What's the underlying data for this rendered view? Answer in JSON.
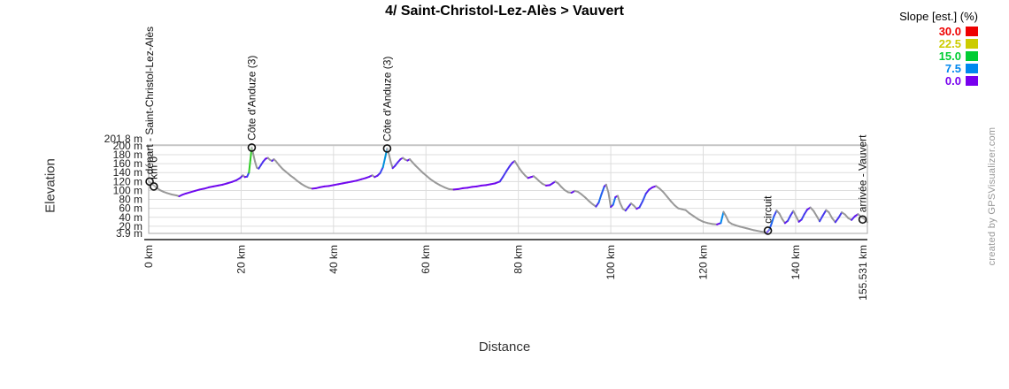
{
  "chart": {
    "title": "4/ Saint-Christol-Lez-Alès > Vauvert",
    "xlabel": "Distance",
    "ylabel": "Elevation",
    "watermark": "created by GPSVisualizer.com"
  },
  "legend": {
    "title": "Slope [est.] (%)",
    "entries": [
      {
        "label": "30.0",
        "color": "#ee0000"
      },
      {
        "label": "22.5",
        "color": "#cccc00"
      },
      {
        "label": "15.0",
        "color": "#00cc33"
      },
      {
        "label": "7.5",
        "color": "#0088ee"
      },
      {
        "label": "0.0",
        "color": "#7700ee"
      }
    ]
  },
  "chart_data": {
    "type": "line",
    "title": "4/ Saint-Christol-Lez-Alès > Vauvert",
    "xlabel": "Distance",
    "ylabel": "Elevation",
    "x_unit": "km",
    "y_unit": "m",
    "xlim": [
      0,
      155.531
    ],
    "ylim": [
      3.9,
      201.8
    ],
    "grid": true,
    "legend_position": "top-right",
    "ascent_color_scale_pct": [
      [
        0,
        "#7700ee"
      ],
      [
        7.5,
        "#0088ee"
      ],
      [
        15,
        "#00cc33"
      ],
      [
        22.5,
        "#cccc00"
      ],
      [
        30,
        "#ee0000"
      ]
    ],
    "descent_color": "#999999",
    "x_ticks": [
      {
        "value": 0,
        "label": "0 km"
      },
      {
        "value": 20,
        "label": "20 km"
      },
      {
        "value": 40,
        "label": "40 km"
      },
      {
        "value": 60,
        "label": "60 km"
      },
      {
        "value": 80,
        "label": "80 km"
      },
      {
        "value": 100,
        "label": "100 km"
      },
      {
        "value": 120,
        "label": "120 km"
      },
      {
        "value": 140,
        "label": "140 km"
      },
      {
        "value": 155.531,
        "label": "155.531 km",
        "edge": "max"
      }
    ],
    "y_ticks": [
      {
        "value": 201.8,
        "label": "201.8 m",
        "edge": "max"
      },
      {
        "value": 200,
        "label": "200 m"
      },
      {
        "value": 180,
        "label": "180 m"
      },
      {
        "value": 160,
        "label": "160 m"
      },
      {
        "value": 140,
        "label": "140 m"
      },
      {
        "value": 120,
        "label": "120 m"
      },
      {
        "value": 100,
        "label": "100 m"
      },
      {
        "value": 80,
        "label": "80 m"
      },
      {
        "value": 60,
        "label": "60 m"
      },
      {
        "value": 40,
        "label": "40 m"
      },
      {
        "value": 20,
        "label": "20 m"
      },
      {
        "value": 3.9,
        "label": "3.9 m",
        "edge": "min"
      }
    ],
    "waypoints": [
      {
        "label": "départ - Saint-Christol-Lez-Alès",
        "km": 0.2,
        "elev": 120
      },
      {
        "label": "km 0",
        "km": 1.1,
        "elev": 109
      },
      {
        "label": "Côte d'Anduze (3)",
        "km": 22.3,
        "elev": 196
      },
      {
        "label": "Côte d'Anduze (3)",
        "km": 51.6,
        "elev": 194
      },
      {
        "label": "circuit",
        "km": 134.0,
        "elev": 10
      },
      {
        "label": "arrivée - Vauvert",
        "km": 154.5,
        "elev": 35
      }
    ],
    "profile_km_m": [
      [
        0,
        121
      ],
      [
        0.8,
        114
      ],
      [
        1.6,
        107
      ],
      [
        2.4,
        101
      ],
      [
        3.2,
        97
      ],
      [
        4,
        94
      ],
      [
        5,
        91
      ],
      [
        6,
        89
      ],
      [
        6.6,
        87
      ],
      [
        7.2,
        90
      ],
      [
        8,
        93
      ],
      [
        9,
        96
      ],
      [
        10,
        99
      ],
      [
        11,
        102
      ],
      [
        12,
        104
      ],
      [
        13,
        107
      ],
      [
        14,
        109
      ],
      [
        15,
        111
      ],
      [
        16,
        113
      ],
      [
        17,
        116
      ],
      [
        18,
        119
      ],
      [
        19,
        123
      ],
      [
        19.8,
        128
      ],
      [
        20.4,
        134
      ],
      [
        20.8,
        130
      ],
      [
        21.3,
        131
      ],
      [
        21.7,
        140
      ],
      [
        22,
        168
      ],
      [
        22.3,
        196
      ],
      [
        22.6,
        183
      ],
      [
        23,
        165
      ],
      [
        23.4,
        151
      ],
      [
        23.8,
        149
      ],
      [
        24.3,
        157
      ],
      [
        24.8,
        165
      ],
      [
        25.3,
        171
      ],
      [
        25.8,
        173
      ],
      [
        26.2,
        169
      ],
      [
        26.7,
        166
      ],
      [
        27.1,
        170
      ],
      [
        27.5,
        166
      ],
      [
        28.2,
        157
      ],
      [
        29,
        148
      ],
      [
        29.8,
        141
      ],
      [
        30.6,
        134
      ],
      [
        31.4,
        128
      ],
      [
        32.2,
        121
      ],
      [
        33,
        115
      ],
      [
        33.8,
        110
      ],
      [
        34.6,
        106
      ],
      [
        35.4,
        104
      ],
      [
        36.2,
        105
      ],
      [
        37,
        107
      ],
      [
        38,
        109
      ],
      [
        39,
        110
      ],
      [
        40,
        112
      ],
      [
        41,
        114
      ],
      [
        42,
        116
      ],
      [
        43,
        118
      ],
      [
        44,
        120
      ],
      [
        45,
        122
      ],
      [
        46,
        125
      ],
      [
        47,
        128
      ],
      [
        47.8,
        131
      ],
      [
        48.4,
        134
      ],
      [
        48.9,
        130
      ],
      [
        49.5,
        133
      ],
      [
        50.1,
        139
      ],
      [
        50.7,
        152
      ],
      [
        51.2,
        175
      ],
      [
        51.6,
        194
      ],
      [
        52,
        181
      ],
      [
        52.4,
        163
      ],
      [
        52.8,
        150
      ],
      [
        53.3,
        155
      ],
      [
        53.9,
        163
      ],
      [
        54.5,
        170
      ],
      [
        55,
        173
      ],
      [
        55.5,
        169
      ],
      [
        56,
        167
      ],
      [
        56.5,
        170
      ],
      [
        57,
        164
      ],
      [
        57.8,
        155
      ],
      [
        58.6,
        147
      ],
      [
        59.4,
        139
      ],
      [
        60.2,
        132
      ],
      [
        61,
        125
      ],
      [
        62,
        118
      ],
      [
        63,
        112
      ],
      [
        64,
        107
      ],
      [
        65,
        103
      ],
      [
        66,
        102
      ],
      [
        67,
        103
      ],
      [
        68,
        105
      ],
      [
        69,
        106
      ],
      [
        70,
        108
      ],
      [
        71,
        109
      ],
      [
        72,
        111
      ],
      [
        73,
        112
      ],
      [
        74,
        114
      ],
      [
        75,
        116
      ],
      [
        76,
        120
      ],
      [
        76.7,
        131
      ],
      [
        77.4,
        143
      ],
      [
        78.1,
        154
      ],
      [
        78.7,
        162
      ],
      [
        79.2,
        166
      ],
      [
        79.7,
        158
      ],
      [
        80.3,
        148
      ],
      [
        80.9,
        140
      ],
      [
        81.5,
        133
      ],
      [
        82.1,
        128
      ],
      [
        82.7,
        130
      ],
      [
        83.3,
        132
      ],
      [
        83.9,
        127
      ],
      [
        84.5,
        121
      ],
      [
        85.2,
        115
      ],
      [
        86,
        111
      ],
      [
        86.8,
        112
      ],
      [
        87.4,
        116
      ],
      [
        88,
        120
      ],
      [
        88.6,
        116
      ],
      [
        89.3,
        108
      ],
      [
        90,
        101
      ],
      [
        90.8,
        96
      ],
      [
        91.5,
        95
      ],
      [
        92.2,
        99
      ],
      [
        92.9,
        97
      ],
      [
        93.7,
        91
      ],
      [
        94.5,
        84
      ],
      [
        95.3,
        76
      ],
      [
        96.1,
        69
      ],
      [
        96.8,
        64
      ],
      [
        97.4,
        73
      ],
      [
        98,
        92
      ],
      [
        98.6,
        109
      ],
      [
        99,
        113
      ],
      [
        99.5,
        95
      ],
      [
        100,
        63
      ],
      [
        100.5,
        68
      ],
      [
        101,
        85
      ],
      [
        101.5,
        88
      ],
      [
        102,
        72
      ],
      [
        102.6,
        59
      ],
      [
        103.2,
        55
      ],
      [
        103.8,
        63
      ],
      [
        104.4,
        71
      ],
      [
        105,
        66
      ],
      [
        105.6,
        59
      ],
      [
        106.2,
        62
      ],
      [
        106.9,
        76
      ],
      [
        107.6,
        93
      ],
      [
        108.3,
        102
      ],
      [
        109,
        107
      ],
      [
        109.8,
        110
      ],
      [
        110.6,
        104
      ],
      [
        111.4,
        96
      ],
      [
        112.2,
        86
      ],
      [
        113,
        76
      ],
      [
        113.8,
        67
      ],
      [
        114.6,
        60
      ],
      [
        115.4,
        58
      ],
      [
        116.2,
        56
      ],
      [
        117,
        49
      ],
      [
        118,
        42
      ],
      [
        119,
        35
      ],
      [
        120,
        30
      ],
      [
        121,
        27
      ],
      [
        122,
        25
      ],
      [
        123,
        24
      ],
      [
        123.8,
        27
      ],
      [
        124.4,
        52
      ],
      [
        124.9,
        43
      ],
      [
        125.5,
        30
      ],
      [
        126.2,
        25
      ],
      [
        127,
        22
      ],
      [
        128,
        19
      ],
      [
        129.5,
        15
      ],
      [
        131,
        11
      ],
      [
        132.5,
        8
      ],
      [
        133.8,
        6
      ],
      [
        134.3,
        12
      ],
      [
        134.8,
        26
      ],
      [
        135.3,
        42
      ],
      [
        135.9,
        55
      ],
      [
        136.5,
        48
      ],
      [
        137.1,
        36
      ],
      [
        137.7,
        27
      ],
      [
        138.3,
        32
      ],
      [
        138.9,
        44
      ],
      [
        139.5,
        54
      ],
      [
        140.1,
        42
      ],
      [
        140.7,
        30
      ],
      [
        141.3,
        35
      ],
      [
        141.9,
        47
      ],
      [
        142.5,
        57
      ],
      [
        143.2,
        62
      ],
      [
        143.9,
        54
      ],
      [
        144.6,
        42
      ],
      [
        145.2,
        31
      ],
      [
        145.9,
        44
      ],
      [
        146.6,
        56
      ],
      [
        147.2,
        51
      ],
      [
        147.9,
        38
      ],
      [
        148.6,
        29
      ],
      [
        149.3,
        39
      ],
      [
        150,
        51
      ],
      [
        150.7,
        46
      ],
      [
        151.4,
        38
      ],
      [
        152.1,
        34
      ],
      [
        152.8,
        42
      ],
      [
        153.5,
        47
      ],
      [
        154.2,
        41
      ],
      [
        154.9,
        36
      ],
      [
        155.531,
        29
      ]
    ]
  }
}
